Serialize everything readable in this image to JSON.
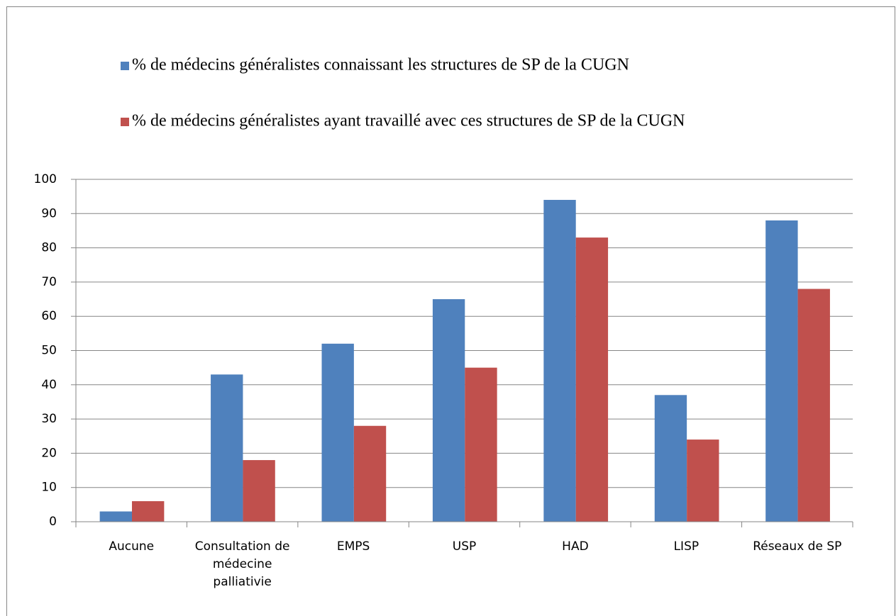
{
  "chart_data": {
    "type": "bar",
    "categories": [
      "Aucune",
      "Consultation de médecine palliativie",
      "EMPS",
      "USP",
      "HAD",
      "LISP",
      "Réseaux de SP"
    ],
    "series": [
      {
        "name": "% de médecins généralistes connaissant les structures de SP de la CUGN",
        "color": "#4f81bd",
        "values": [
          3,
          43,
          52,
          65,
          94,
          37,
          88
        ]
      },
      {
        "name": "% de médecins généralistes ayant travaillé avec ces structures de SP de la CUGN",
        "color": "#c0504d",
        "values": [
          6,
          18,
          28,
          45,
          83,
          24,
          68
        ]
      }
    ],
    "ylim": [
      0,
      100
    ],
    "yticks": [
      0,
      10,
      20,
      30,
      40,
      50,
      60,
      70,
      80,
      90,
      100
    ],
    "grid": true,
    "legend": "top"
  }
}
